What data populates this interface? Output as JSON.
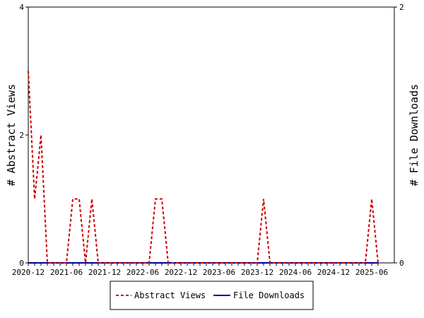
{
  "chart_data": {
    "type": "line",
    "title": "",
    "xlabel": "",
    "ylabel_left": "# Abstract Views",
    "ylabel_right": "# File Downloads",
    "ylim_left": [
      0,
      4
    ],
    "ylim_right": [
      0,
      2
    ],
    "yticks_left": [
      0,
      2,
      4
    ],
    "yticks_right": [
      0,
      2
    ],
    "x_tick_labels": [
      "2020-12",
      "2021-06",
      "2021-12",
      "2022-06",
      "2022-12",
      "2023-06",
      "2023-12",
      "2024-06",
      "2024-12",
      "2025-06"
    ],
    "x": [
      "2020-12",
      "2021-01",
      "2021-02",
      "2021-03",
      "2021-04",
      "2021-05",
      "2021-06",
      "2021-07",
      "2021-08",
      "2021-09",
      "2021-10",
      "2021-11",
      "2021-12",
      "2022-01",
      "2022-02",
      "2022-03",
      "2022-04",
      "2022-05",
      "2022-06",
      "2022-07",
      "2022-08",
      "2022-09",
      "2022-10",
      "2022-11",
      "2022-12",
      "2023-01",
      "2023-02",
      "2023-03",
      "2023-04",
      "2023-05",
      "2023-06",
      "2023-07",
      "2023-08",
      "2023-09",
      "2023-10",
      "2023-11",
      "2023-12",
      "2024-01",
      "2024-02",
      "2024-03",
      "2024-04",
      "2024-05",
      "2024-06",
      "2024-07",
      "2024-08",
      "2024-09",
      "2024-10",
      "2024-11",
      "2024-12",
      "2025-01",
      "2025-02",
      "2025-03",
      "2025-04",
      "2025-05",
      "2025-06",
      "2025-07"
    ],
    "series": [
      {
        "name": "Abstract Views",
        "axis": "left",
        "color": "#cc0000",
        "dash": true,
        "values": [
          3,
          1,
          2,
          0,
          0,
          0,
          0,
          1,
          1,
          0,
          1,
          0,
          0,
          0,
          0,
          0,
          0,
          0,
          0,
          0,
          1,
          1,
          0,
          0,
          0,
          0,
          0,
          0,
          0,
          0,
          0,
          0,
          0,
          0,
          0,
          0,
          0,
          1,
          0,
          0,
          0,
          0,
          0,
          0,
          0,
          0,
          0,
          0,
          0,
          0,
          0,
          0,
          0,
          0,
          1,
          0
        ]
      },
      {
        "name": "File Downloads",
        "axis": "right",
        "color": "#000099",
        "dash": false,
        "values": [
          0,
          0,
          0,
          0,
          0,
          0,
          0,
          0,
          0,
          0,
          0,
          0,
          0,
          0,
          0,
          0,
          0,
          0,
          0,
          0,
          0,
          0,
          0,
          0,
          0,
          0,
          0,
          0,
          0,
          0,
          0,
          0,
          0,
          0,
          0,
          0,
          0,
          0,
          0,
          0,
          0,
          0,
          0,
          0,
          0,
          0,
          0,
          0,
          0,
          0,
          0,
          0,
          0,
          0,
          0,
          0
        ]
      }
    ],
    "grid": false,
    "legend": "bottom"
  }
}
